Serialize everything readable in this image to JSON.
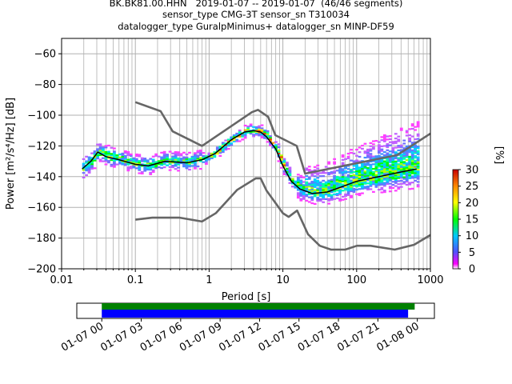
{
  "title_lines": [
    "BK.BK81.00.HHN   2019-01-07 -- 2019-01-07  (46/46 segments)",
    "sensor_type CMG-3T sensor_sn T310034",
    "datalogger_type GuralpMinimus+ datalogger_sn MINP-DF59"
  ],
  "chart_data": {
    "type": "heatmap",
    "xlabel": "Period [s]",
    "ylabel": "Power [m²/s⁴/Hz] [dB]",
    "x_scale": "log",
    "xlim": [
      0.01,
      1000
    ],
    "ylim": [
      -200,
      -50
    ],
    "x_ticks": [
      0.01,
      0.1,
      1,
      10,
      100,
      1000
    ],
    "x_tick_labels": [
      "0.01",
      "0.1",
      "1",
      "10",
      "100",
      "1000"
    ],
    "y_ticks": [
      -200,
      -180,
      -160,
      -140,
      -120,
      -100,
      -80,
      -60
    ],
    "y_tick_labels": [
      "−200",
      "−180",
      "−160",
      "−140",
      "−120",
      "−100",
      "−80",
      "−60"
    ],
    "grid": true,
    "mean_curve": {
      "period": [
        0.019,
        0.025,
        0.031,
        0.04,
        0.06,
        0.1,
        0.15,
        0.25,
        0.5,
        0.8,
        1.2,
        2,
        3,
        4,
        5,
        6,
        8,
        10,
        13,
        17,
        25,
        40,
        60,
        100,
        200,
        400,
        650
      ],
      "db": [
        -135,
        -130,
        -124,
        -127,
        -129,
        -132,
        -133,
        -130,
        -131,
        -129,
        -125,
        -116,
        -111,
        -110,
        -111,
        -114,
        -122,
        -133,
        -143,
        -148,
        -151,
        -150,
        -147,
        -143,
        -140,
        -137,
        -135
      ]
    },
    "noise_model_high": {
      "period": [
        0.1,
        0.22,
        0.32,
        0.8,
        3.8,
        4.6,
        6.3,
        7.9,
        15.4,
        20,
        354,
        1000
      ],
      "db": [
        -91.5,
        -97.4,
        -110.5,
        -120,
        -98,
        -96.5,
        -101,
        -113,
        -120,
        -138,
        -126,
        -112
      ]
    },
    "noise_model_low": {
      "period": [
        0.1,
        0.17,
        0.4,
        0.8,
        1.24,
        2.4,
        4.3,
        5,
        6,
        10,
        12,
        15.6,
        21.9,
        31.6,
        45,
        70,
        101,
        154,
        328,
        600,
        1000
      ],
      "db": [
        -168,
        -166.7,
        -166.7,
        -169.2,
        -163.7,
        -148.6,
        -141.1,
        -141.1,
        -149,
        -163.8,
        -166.2,
        -162.1,
        -177.5,
        -185,
        -187.5,
        -187.5,
        -185,
        -185,
        -187.5,
        -184.4,
        -178
      ]
    },
    "colorbar": {
      "label": "[%]",
      "ticks": [
        0,
        5,
        10,
        15,
        20,
        25,
        30
      ],
      "range": [
        0,
        30
      ],
      "colormap": "pqlx"
    },
    "coverage": {
      "x_tick_labels": [
        "01-07 00",
        "01-07 03",
        "01-07 06",
        "01-07 09",
        "01-07 12",
        "01-07 15",
        "01-07 18",
        "01-07 21",
        "01-08 00"
      ],
      "data_span_hours": [
        0,
        23.8
      ],
      "used_span_hours": [
        0,
        23.3
      ],
      "data_color": "#008000",
      "used_color": "#0000ff"
    }
  }
}
